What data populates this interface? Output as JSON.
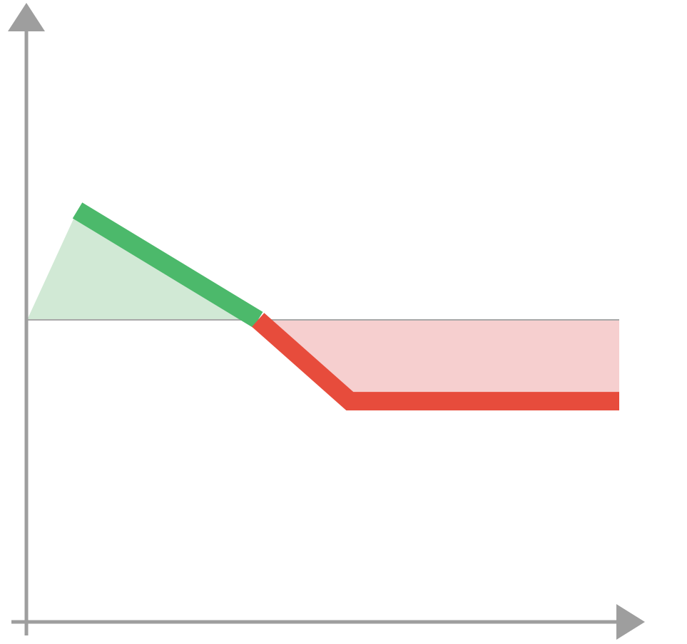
{
  "chart_data": {
    "type": "line",
    "title": "",
    "xlabel": "",
    "ylabel": "",
    "grid": false,
    "legend": "none",
    "axes": {
      "x_arrow": true,
      "y_arrow": true,
      "tick_labels": false
    },
    "xlim": [
      0,
      10
    ],
    "ylim": [
      -5,
      5
    ],
    "baseline_y": 0,
    "x": [
      0,
      0.85,
      3.9,
      5.45,
      10
    ],
    "y": [
      0,
      1.75,
      0,
      -1.3,
      -1.3
    ],
    "series": [
      {
        "values": [
          0,
          1.75,
          0,
          -1.3,
          -1.3
        ],
        "profit_color": "#4cb96b",
        "loss_color": "#e74c3c",
        "profit_fill": "#d1e9d5",
        "loss_fill": "#f6cfcf"
      }
    ],
    "colors": {
      "axis": "#9e9e9e",
      "baseline": "#a8a8a8",
      "profit": "#4cb96b",
      "loss": "#e74c3c",
      "profit_fill": "#d1e9d5",
      "loss_fill": "#f6cfcf"
    }
  }
}
